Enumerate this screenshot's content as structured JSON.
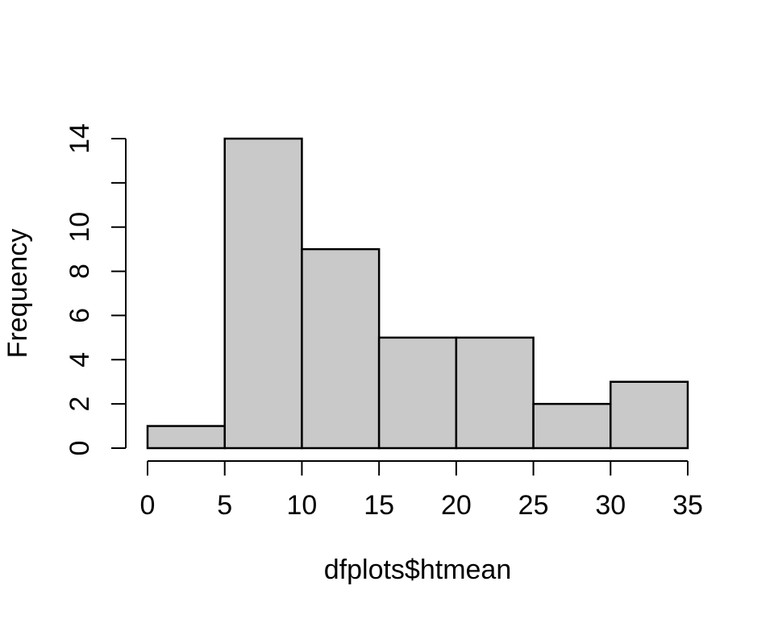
{
  "chart_data": {
    "type": "bar",
    "subtype": "histogram",
    "title": "",
    "xlabel": "dfplots$htmean",
    "ylabel": "Frequency",
    "bin_edges": [
      0,
      5,
      10,
      15,
      20,
      25,
      30,
      35
    ],
    "counts": [
      1,
      14,
      9,
      5,
      5,
      2,
      3
    ],
    "xlim": [
      0,
      35
    ],
    "ylim": [
      0,
      14
    ],
    "x_ticks": [
      0,
      5,
      10,
      15,
      20,
      25,
      30,
      35
    ],
    "x_tick_labels": [
      "0",
      "5",
      "10",
      "15",
      "20",
      "25",
      "30",
      "35"
    ],
    "y_ticks": [
      0,
      2,
      4,
      6,
      8,
      10,
      12,
      14
    ],
    "y_tick_labels": [
      "0",
      "2",
      "4",
      "6",
      "8",
      "10",
      "",
      "14"
    ],
    "grid": false,
    "legend": null,
    "colors": {
      "bar_fill": "#C9C9C9",
      "bar_stroke": "#000000",
      "axis": "#000000",
      "text": "#000000",
      "background": "#FFFFFF"
    }
  }
}
